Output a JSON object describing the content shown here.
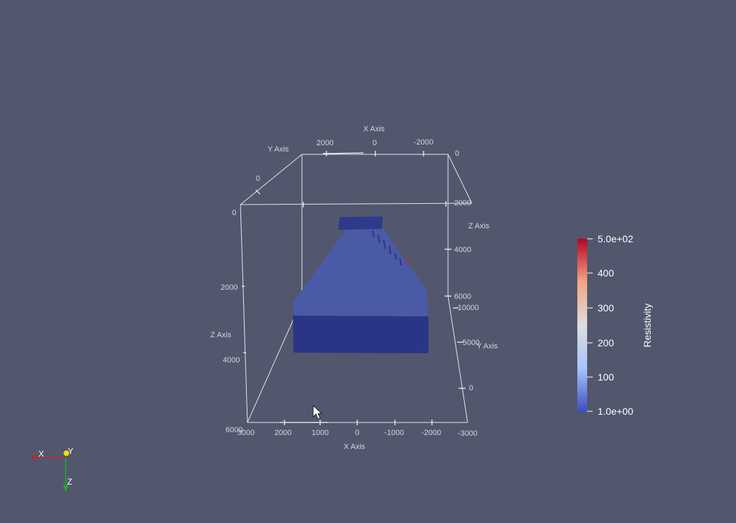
{
  "viewer": {
    "background": "#52576e",
    "surface_colors": {
      "top": "#2f3a8a",
      "slope": "#4a5aa6",
      "front": "#2b3586"
    }
  },
  "axes": {
    "x_top_title": "X Axis",
    "x_top_ticks": [
      "2000",
      "0",
      "-2000",
      "0"
    ],
    "y_top_title": "Y Axis",
    "y_top_ticks": [
      "0",
      "0"
    ],
    "z_right_title": "Z Axis",
    "z_right_ticks": [
      "2000",
      "4000",
      "6000"
    ],
    "y_right_title": "Y Axis",
    "y_right_ticks": [
      "10000",
      "5000",
      "0"
    ],
    "z_left_title": "Z Axis",
    "z_left_ticks": [
      "2000",
      "4000",
      "6000"
    ],
    "x_bottom_title": "X Axis",
    "x_bottom_ticks": [
      "3000",
      "2000",
      "1000",
      "0",
      "-1000",
      "-2000",
      "-3000"
    ]
  },
  "colorbar": {
    "title": "Resistivity",
    "labels": [
      "5.0e+02",
      "400",
      "300",
      "200",
      "100",
      "1.0e+00"
    ],
    "colors": [
      "#b40426",
      "#f4a582",
      "#dddddd",
      "#a6c4ff",
      "#3b4cc0"
    ]
  },
  "orientation": {
    "x_label": "X",
    "y_label": "Y",
    "z_label": "Z",
    "x_color": "#c0282a",
    "y_color": "#f0e000",
    "z_color": "#20b020"
  }
}
